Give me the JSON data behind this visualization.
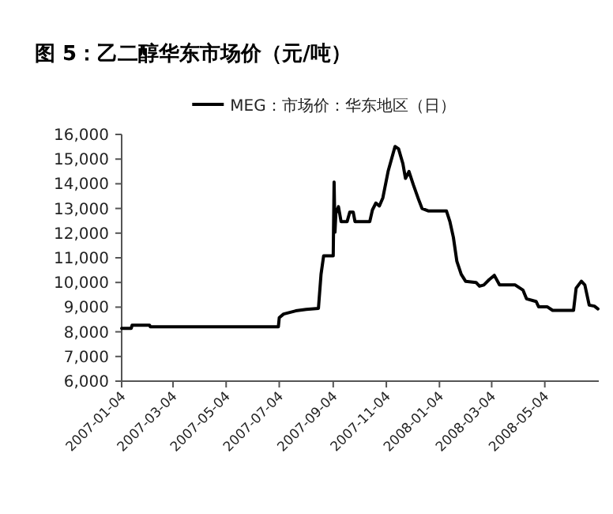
{
  "chart_data": {
    "type": "line",
    "title": "图 5：乙二醇华东市场价（元/吨）",
    "legend": "top",
    "grid": false,
    "marker": "none",
    "line_style": "solid",
    "xlim": [
      "2007-01-04",
      "2008-07-05"
    ],
    "xticks": [
      "2007-01-04",
      "2007-03-04",
      "2007-05-04",
      "2007-07-04",
      "2007-09-04",
      "2007-11-04",
      "2008-01-04",
      "2008-03-04",
      "2008-05-04"
    ],
    "ylim": [
      6000,
      16000
    ],
    "yticks": [
      {
        "value": 6000,
        "label": "6,000"
      },
      {
        "value": 7000,
        "label": "7,000"
      },
      {
        "value": 8000,
        "label": "8,000"
      },
      {
        "value": 9000,
        "label": "9,000"
      },
      {
        "value": 10000,
        "label": "10,000"
      },
      {
        "value": 11000,
        "label": "11,000"
      },
      {
        "value": 12000,
        "label": "12,000"
      },
      {
        "value": 13000,
        "label": "13,000"
      },
      {
        "value": 14000,
        "label": "14,000"
      },
      {
        "value": 15000,
        "label": "15,000"
      },
      {
        "value": 16000,
        "label": "16,000"
      }
    ],
    "x": [
      "2007-01-04",
      "2007-01-15",
      "2007-01-16",
      "2007-02-05",
      "2007-02-06",
      "2007-07-03",
      "2007-07-04",
      "2007-07-09",
      "2007-07-23",
      "2007-08-04",
      "2007-08-18",
      "2007-08-21",
      "2007-08-24",
      "2007-09-04",
      "2007-09-05",
      "2007-09-06",
      "2007-09-07",
      "2007-09-10",
      "2007-09-13",
      "2007-09-20",
      "2007-09-23",
      "2007-09-27",
      "2007-09-29",
      "2007-10-16",
      "2007-10-19",
      "2007-10-23",
      "2007-10-27",
      "2007-10-31",
      "2007-11-06",
      "2007-11-14",
      "2007-11-18",
      "2007-11-23",
      "2007-11-26",
      "2007-11-30",
      "2007-12-05",
      "2007-12-11",
      "2007-12-15",
      "2007-12-22",
      "2008-01-12",
      "2008-01-16",
      "2008-01-20",
      "2008-01-24",
      "2008-01-29",
      "2008-02-03",
      "2008-02-15",
      "2008-02-19",
      "2008-02-24",
      "2008-03-01",
      "2008-03-07",
      "2008-03-13",
      "2008-03-31",
      "2008-04-09",
      "2008-04-13",
      "2008-04-24",
      "2008-04-27",
      "2008-05-07",
      "2008-05-13",
      "2008-06-06",
      "2008-06-09",
      "2008-06-15",
      "2008-06-19",
      "2008-06-24",
      "2008-06-30",
      "2008-07-04"
    ],
    "series": [
      {
        "name": "MEG：市场价：华东地区（日）",
        "color": "#000000",
        "values": [
          8140,
          8140,
          8270,
          8270,
          8200,
          8200,
          8570,
          8720,
          8850,
          8910,
          8950,
          10330,
          11080,
          11080,
          14070,
          12040,
          12790,
          13070,
          12470,
          12470,
          12850,
          12850,
          12470,
          12470,
          12940,
          13220,
          13100,
          13430,
          14500,
          15510,
          15420,
          14820,
          14220,
          14500,
          13960,
          13370,
          13000,
          12900,
          12900,
          12470,
          11830,
          10860,
          10330,
          10050,
          10000,
          9850,
          9900,
          10110,
          10290,
          9900,
          9900,
          9690,
          9340,
          9230,
          9010,
          9010,
          8870,
          8870,
          9770,
          10050,
          9900,
          9080,
          9040,
          8930
        ]
      }
    ]
  }
}
